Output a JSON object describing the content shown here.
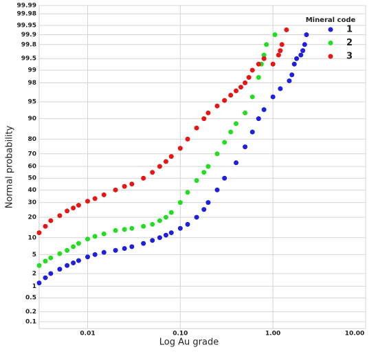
{
  "chart_data": {
    "type": "scatter",
    "x_label": "Log Au grade",
    "y_label": "Normal probability",
    "xscale": "log",
    "yscale": "probability",
    "grid": true,
    "xlim": [
      0.003,
      10
    ],
    "xticks": [
      0.01,
      {
        "value": 0.1,
        "label": "0.10"
      },
      {
        "value": 1,
        "label": "1.00"
      },
      {
        "value": 10,
        "label": "10.00"
      }
    ],
    "ylim": [
      0.06,
      99.99
    ],
    "yticks": [
      0.1,
      0.2,
      0.5,
      1,
      2,
      5,
      10,
      20,
      30,
      40,
      50,
      60,
      70,
      80,
      90,
      95,
      98,
      99,
      99.5,
      99.8,
      99.9,
      99.95,
      99.98,
      99.99
    ],
    "legend_title": "Mineral code",
    "legend_position": "upper right",
    "series": [
      {
        "name": "1",
        "color": "#1f1fdc",
        "x": [
          0.003,
          0.0035,
          0.004,
          0.005,
          0.006,
          0.007,
          0.008,
          0.01,
          0.012,
          0.015,
          0.02,
          0.025,
          0.03,
          0.04,
          0.05,
          0.06,
          0.07,
          0.08,
          0.1,
          0.12,
          0.15,
          0.18,
          0.2,
          0.25,
          0.3,
          0.4,
          0.5,
          0.6,
          0.7,
          0.8,
          1.0,
          1.2,
          1.5,
          1.6,
          1.7,
          1.8,
          2.0,
          2.1,
          2.2,
          2.3
        ],
        "values": [
          1.2,
          1.6,
          2,
          2.5,
          3,
          3.4,
          3.8,
          4.5,
          5,
          5.5,
          6,
          6.5,
          7,
          8,
          9,
          10,
          11,
          12,
          14,
          16,
          20,
          25,
          30,
          40,
          50,
          63,
          75,
          84,
          90,
          93,
          96,
          97.3,
          98.2,
          98.7,
          99.3,
          99.5,
          99.6,
          99.7,
          99.8,
          99.9
        ]
      },
      {
        "name": "2",
        "color": "#22dd22",
        "x": [
          0.003,
          0.0035,
          0.004,
          0.005,
          0.006,
          0.007,
          0.008,
          0.01,
          0.012,
          0.015,
          0.02,
          0.025,
          0.03,
          0.04,
          0.05,
          0.06,
          0.07,
          0.08,
          0.1,
          0.12,
          0.15,
          0.18,
          0.2,
          0.25,
          0.3,
          0.35,
          0.4,
          0.5,
          0.6,
          0.7,
          0.75,
          0.8,
          0.85,
          1.05
        ],
        "values": [
          3,
          3.7,
          4.3,
          5.2,
          6,
          7,
          8,
          9.5,
          10.5,
          11.5,
          13,
          13.5,
          14,
          15,
          16,
          18,
          20,
          23,
          30,
          38,
          48,
          55,
          60,
          70,
          78,
          84,
          88,
          92,
          96,
          98.5,
          99.3,
          99.6,
          99.8,
          99.9
        ]
      },
      {
        "name": "3",
        "color": "#e81515",
        "x": [
          0.003,
          0.0035,
          0.004,
          0.005,
          0.006,
          0.007,
          0.008,
          0.01,
          0.012,
          0.015,
          0.02,
          0.025,
          0.03,
          0.04,
          0.05,
          0.06,
          0.07,
          0.08,
          0.1,
          0.12,
          0.15,
          0.18,
          0.2,
          0.25,
          0.3,
          0.35,
          0.4,
          0.45,
          0.5,
          0.55,
          0.6,
          0.7,
          0.8,
          1.0,
          1.15,
          1.2,
          1.25,
          1.4
        ],
        "values": [
          12,
          15,
          18,
          21,
          24,
          26,
          28,
          31,
          33,
          36,
          40,
          43,
          45,
          50,
          55,
          60,
          64,
          68,
          74,
          80,
          86,
          90,
          92,
          94,
          95.3,
          96.3,
          97,
          97.5,
          98,
          98.5,
          99,
          99.3,
          99.5,
          99.3,
          99.6,
          99.7,
          99.8,
          99.93
        ]
      }
    ]
  }
}
